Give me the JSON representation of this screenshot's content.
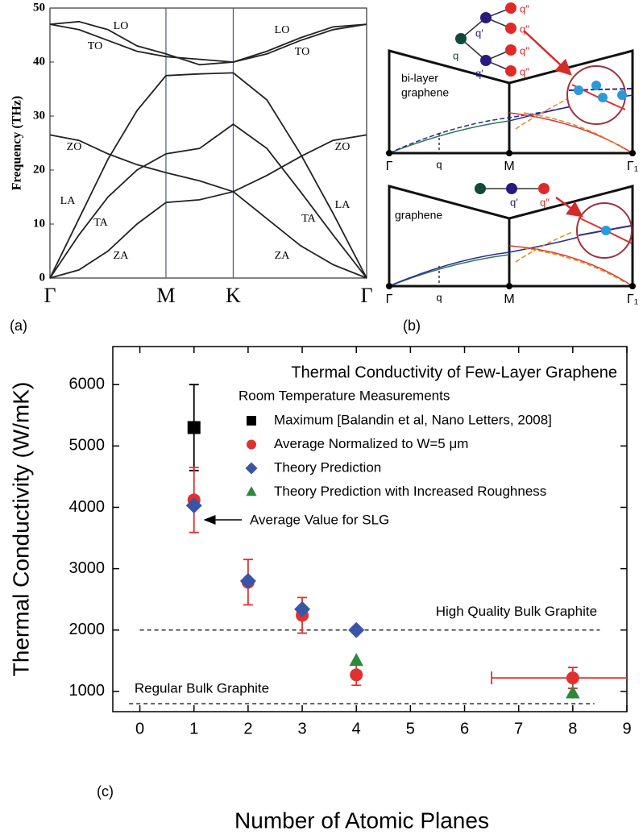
{
  "chart_data": [
    {
      "type": "line",
      "panel_label": "(a)",
      "ylabel": "Frequency (THz)",
      "color": "#222222",
      "x": [
        0,
        0.25,
        0.5,
        0.75,
        1,
        1.29,
        1.58,
        1.87,
        2.16,
        2.44,
        2.73
      ],
      "xlim": [
        0,
        2.73
      ],
      "xticks": [
        {
          "value": 0,
          "label": "Γ"
        },
        {
          "value": 1,
          "label": "M"
        },
        {
          "value": 1.58,
          "label": "K"
        },
        {
          "value": 2.73,
          "label": "Γ"
        }
      ],
      "ylim": [
        0,
        50
      ],
      "yticks": [
        0,
        10,
        20,
        30,
        40,
        50
      ],
      "series": [
        {
          "name": "LO",
          "values": [
            47,
            47.5,
            46,
            43,
            41.5,
            39.5,
            40,
            42,
            44.5,
            46.5,
            47
          ]
        },
        {
          "name": "TO",
          "values": [
            47,
            46,
            44,
            42,
            41,
            40.5,
            40,
            41.5,
            44,
            46,
            47
          ]
        },
        {
          "name": "ZO",
          "values": [
            26.5,
            25.5,
            23,
            21,
            19.5,
            18,
            16,
            19,
            22.5,
            25.5,
            26.5
          ]
        },
        {
          "name": "LA",
          "values": [
            0,
            11,
            22,
            31,
            37.5,
            37.8,
            38,
            33,
            23,
            12,
            0
          ]
        },
        {
          "name": "TA",
          "values": [
            0,
            8,
            15,
            20,
            23,
            24,
            28.5,
            24,
            16,
            8,
            0
          ]
        },
        {
          "name": "ZA",
          "values": [
            0,
            1.5,
            5,
            10,
            14,
            14.5,
            16,
            11,
            6,
            2.5,
            0
          ]
        }
      ]
    },
    {
      "type": "scatter",
      "panel_label": "(c)",
      "title": "Thermal Conductivity of Few-Layer Graphene",
      "subtitle": "Room Temperature Measurements",
      "xlabel": "Number of Atomic Planes",
      "ylabel": "Thermal Conductivity (W/mK)",
      "xlim": [
        -0.5,
        9
      ],
      "xticks": [
        0,
        1,
        2,
        3,
        4,
        5,
        6,
        7,
        8,
        9
      ],
      "ylim": [
        670,
        6620
      ],
      "yticks": [
        1000,
        2000,
        3000,
        4000,
        5000,
        6000
      ],
      "series": [
        {
          "name": "Maximum [Balandin et al, Nano Letters, 2008]",
          "marker": "square",
          "color": "#000000",
          "x": [
            1
          ],
          "values": [
            5300
          ],
          "yerr": [
            700
          ]
        },
        {
          "name": "Average Normalized to W=5 μm",
          "marker": "circle",
          "color": "#e03030",
          "x": [
            1,
            2,
            3,
            4,
            8
          ],
          "values": [
            4120,
            2780,
            2240,
            1270,
            1220
          ],
          "yerr": [
            530,
            370,
            290,
            170,
            170
          ],
          "xerr": [
            null,
            null,
            null,
            null,
            1.5
          ]
        },
        {
          "name": "Theory Prediction",
          "marker": "diamond",
          "color": "#3a55a5",
          "x": [
            1,
            2,
            3,
            4
          ],
          "values": [
            4030,
            2800,
            2340,
            2000
          ]
        },
        {
          "name": "Theory Prediction with Increased Roughness",
          "marker": "triangle",
          "color": "#2a8a3a",
          "x": [
            4,
            8
          ],
          "values": [
            1500,
            970
          ]
        }
      ],
      "reference_lines": [
        {
          "label": "High Quality Bulk Graphite",
          "value": 2000
        },
        {
          "label": "Regular Bulk Graphite",
          "value": 800
        }
      ],
      "annotation": "Average Value for SLG"
    }
  ],
  "panel_b": {
    "label": "(b)",
    "top_title": [
      "bi-layer",
      "graphene"
    ],
    "bottom_title": [
      "graphene"
    ],
    "points": [
      "Γ",
      "q",
      "M",
      "Γ₁"
    ],
    "phonons": [
      "q",
      "q′",
      "q″"
    ]
  }
}
